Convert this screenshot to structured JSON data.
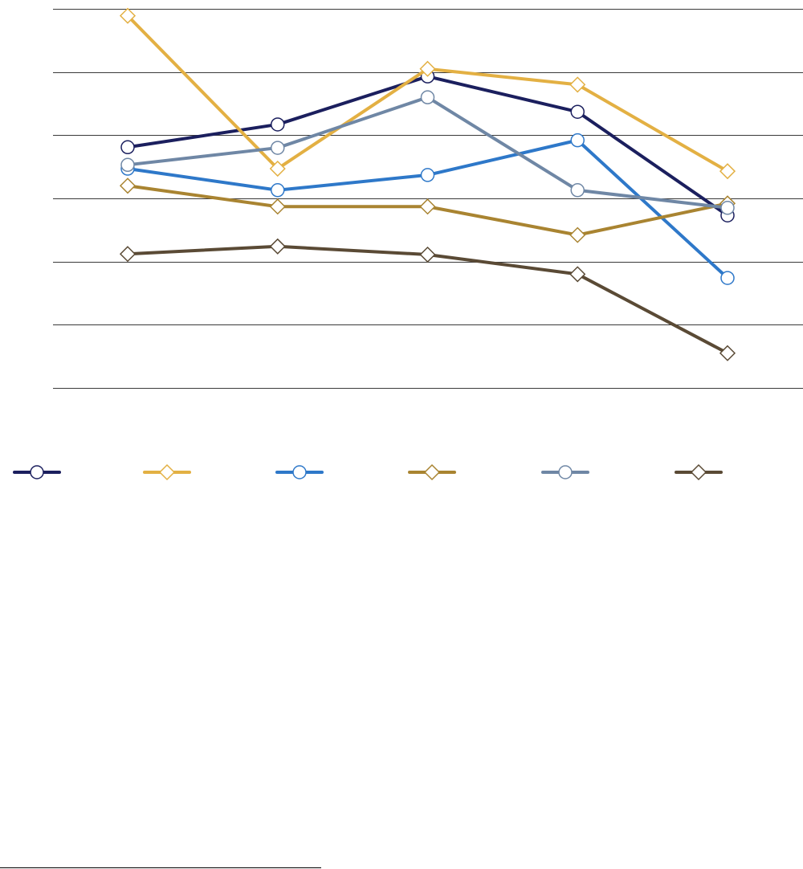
{
  "chart_data": {
    "type": "line",
    "categories": [
      null,
      null,
      null,
      null,
      null
    ],
    "ylim": [
      0,
      6
    ],
    "yticks": [
      0,
      1,
      2,
      3,
      4,
      5,
      6
    ],
    "grid": true,
    "legend": "bottom",
    "series": [
      {
        "color": "#1b1f5e",
        "marker": "circle",
        "values": [
          3.81,
          4.17,
          4.93,
          4.37,
          2.73
        ]
      },
      {
        "color": "#e3b043",
        "marker": "diamond",
        "values": [
          5.89,
          3.47,
          5.05,
          4.8,
          3.43
        ]
      },
      {
        "color": "#2e78c9",
        "marker": "circle",
        "values": [
          3.47,
          3.13,
          3.37,
          3.92,
          1.74
        ]
      },
      {
        "color": "#a98431",
        "marker": "diamond",
        "values": [
          3.2,
          2.87,
          2.87,
          2.42,
          2.92
        ]
      },
      {
        "color": "#6f87a5",
        "marker": "circle",
        "values": [
          3.53,
          3.8,
          4.6,
          3.13,
          2.85
        ]
      },
      {
        "color": "#5a4a35",
        "marker": "diamond",
        "values": [
          2.12,
          2.24,
          2.11,
          1.8,
          0.55
        ]
      }
    ]
  }
}
